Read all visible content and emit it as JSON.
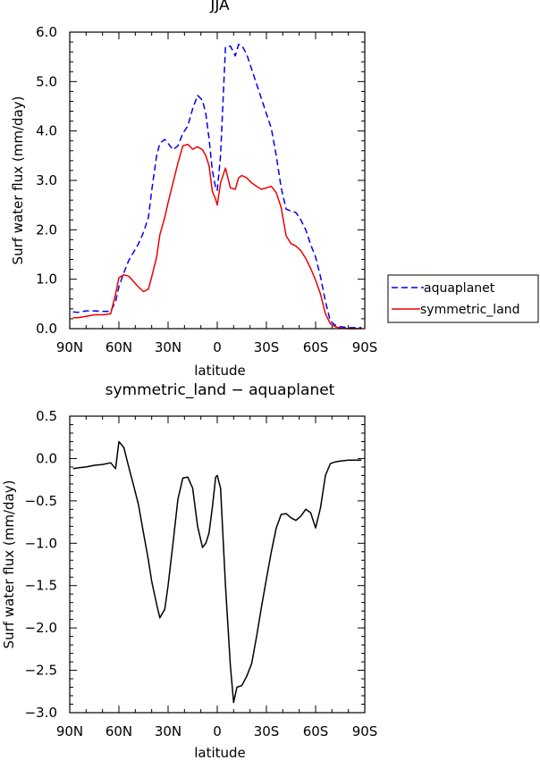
{
  "chart_data": [
    {
      "type": "line",
      "title": "JJA",
      "xlabel": "latitude",
      "ylabel": "Surf water flux (mm/day)",
      "xlim": [
        -90,
        90
      ],
      "ylim": [
        0,
        6
      ],
      "x_ticks": [
        {
          "value": -90,
          "label": "90N"
        },
        {
          "value": -60,
          "label": "60N"
        },
        {
          "value": -30,
          "label": "30N"
        },
        {
          "value": 0,
          "label": "0"
        },
        {
          "value": 30,
          "label": "30S"
        },
        {
          "value": 60,
          "label": "60S"
        },
        {
          "value": 90,
          "label": "90S"
        }
      ],
      "y_ticks": [
        {
          "value": 0,
          "label": "0.0"
        },
        {
          "value": 1,
          "label": "1.0"
        },
        {
          "value": 2,
          "label": "2.0"
        },
        {
          "value": 3,
          "label": "3.0"
        },
        {
          "value": 4,
          "label": "4.0"
        },
        {
          "value": 5,
          "label": "5.0"
        },
        {
          "value": 6,
          "label": "6.0"
        }
      ],
      "legend_position": "right, outside plot",
      "series": [
        {
          "name": "aquaplanet",
          "color": "#0000ee",
          "dash": "dashed",
          "x": [
            -88,
            -85,
            -80,
            -75,
            -70,
            -65,
            -62,
            -60,
            -57,
            -54,
            -51,
            -48,
            -45,
            -42,
            -40,
            -37,
            -35,
            -32,
            -30,
            -27,
            -24,
            -21,
            -18,
            -15,
            -12,
            -9,
            -7,
            -5,
            -3,
            -1,
            0,
            2,
            5,
            8,
            11,
            13,
            15,
            18,
            21,
            24,
            27,
            30,
            33,
            36,
            39,
            42,
            45,
            48,
            51,
            54,
            57,
            60,
            63,
            66,
            69,
            72,
            75,
            80,
            85,
            88
          ],
          "y": [
            0.34,
            0.33,
            0.36,
            0.36,
            0.35,
            0.35,
            0.55,
            0.85,
            1.13,
            1.38,
            1.55,
            1.72,
            1.95,
            2.25,
            2.8,
            3.5,
            3.75,
            3.83,
            3.75,
            3.62,
            3.7,
            3.95,
            4.1,
            4.45,
            4.72,
            4.62,
            4.35,
            3.85,
            3.2,
            2.85,
            2.8,
            3.5,
            5.7,
            5.72,
            5.52,
            5.75,
            5.73,
            5.55,
            5.25,
            4.95,
            4.65,
            4.35,
            4.05,
            3.5,
            2.85,
            2.42,
            2.38,
            2.35,
            2.2,
            2.0,
            1.7,
            1.45,
            1.05,
            0.55,
            0.15,
            0.07,
            0.04,
            0.02,
            0.02,
            0.02
          ]
        },
        {
          "name": "symmetric_land",
          "color": "#ee0000",
          "dash": "solid",
          "x": [
            -88,
            -85,
            -80,
            -75,
            -70,
            -65,
            -62,
            -60,
            -57,
            -54,
            -51,
            -48,
            -45,
            -42,
            -40,
            -37,
            -35,
            -32,
            -30,
            -27,
            -24,
            -21,
            -18,
            -15,
            -12,
            -9,
            -7,
            -5,
            -3,
            -1,
            0,
            2,
            5,
            8,
            11,
            13,
            15,
            18,
            21,
            24,
            27,
            30,
            33,
            36,
            39,
            42,
            45,
            48,
            51,
            54,
            57,
            60,
            63,
            66,
            69,
            72,
            75,
            80,
            85,
            88
          ],
          "y": [
            0.22,
            0.22,
            0.25,
            0.28,
            0.28,
            0.3,
            0.7,
            1.03,
            1.09,
            1.06,
            0.95,
            0.84,
            0.75,
            0.8,
            1.05,
            1.45,
            1.9,
            2.25,
            2.55,
            2.95,
            3.35,
            3.7,
            3.73,
            3.63,
            3.68,
            3.62,
            3.5,
            3.3,
            2.78,
            2.62,
            2.5,
            2.95,
            3.25,
            2.85,
            2.82,
            3.05,
            3.1,
            3.05,
            2.95,
            2.88,
            2.82,
            2.85,
            2.88,
            2.75,
            2.45,
            1.88,
            1.72,
            1.67,
            1.58,
            1.42,
            1.22,
            0.98,
            0.7,
            0.3,
            0.1,
            0.04,
            0.01,
            0.0,
            0.0,
            0.0
          ]
        }
      ]
    },
    {
      "type": "line",
      "title": "symmetric_land − aquaplanet",
      "xlabel": "latitude",
      "ylabel": "Surf water flux (mm/day)",
      "xlim": [
        -90,
        90
      ],
      "ylim": [
        -3,
        0.5
      ],
      "x_ticks": [
        {
          "value": -90,
          "label": "90N"
        },
        {
          "value": -60,
          "label": "60N"
        },
        {
          "value": -30,
          "label": "30N"
        },
        {
          "value": 0,
          "label": "0"
        },
        {
          "value": 30,
          "label": "30S"
        },
        {
          "value": 60,
          "label": "60S"
        },
        {
          "value": 90,
          "label": "90S"
        }
      ],
      "y_ticks": [
        {
          "value": 0.5,
          "label": "0.5"
        },
        {
          "value": 0,
          "label": "0.0"
        },
        {
          "value": -0.5,
          "label": "−0.5"
        },
        {
          "value": -1,
          "label": "−1.0"
        },
        {
          "value": -1.5,
          "label": "−1.5"
        },
        {
          "value": -2,
          "label": "−2.0"
        },
        {
          "value": -2.5,
          "label": "−2.5"
        },
        {
          "value": -3,
          "label": "−3.0"
        }
      ],
      "series": [
        {
          "color": "#000000",
          "dash": "solid",
          "x": [
            -88,
            -85,
            -80,
            -75,
            -70,
            -65,
            -62,
            -60,
            -57,
            -54,
            -51,
            -48,
            -45,
            -42,
            -40,
            -37,
            -35,
            -32,
            -30,
            -27,
            -24,
            -21,
            -18,
            -15,
            -12,
            -9,
            -7,
            -5,
            -3,
            -1,
            0,
            2,
            5,
            8,
            10,
            12,
            15,
            18,
            21,
            24,
            27,
            30,
            33,
            36,
            39,
            42,
            45,
            48,
            51,
            54,
            57,
            60,
            63,
            66,
            69,
            72,
            75,
            80,
            85,
            88
          ],
          "y": [
            -0.12,
            -0.11,
            -0.1,
            -0.08,
            -0.07,
            -0.05,
            -0.12,
            0.2,
            0.13,
            -0.1,
            -0.32,
            -0.55,
            -0.88,
            -1.2,
            -1.45,
            -1.72,
            -1.88,
            -1.78,
            -1.5,
            -1.0,
            -0.48,
            -0.23,
            -0.22,
            -0.35,
            -0.8,
            -1.05,
            -1.0,
            -0.88,
            -0.58,
            -0.22,
            -0.2,
            -0.35,
            -1.5,
            -2.45,
            -2.88,
            -2.7,
            -2.68,
            -2.57,
            -2.42,
            -2.1,
            -1.75,
            -1.42,
            -1.1,
            -0.82,
            -0.66,
            -0.65,
            -0.7,
            -0.73,
            -0.68,
            -0.6,
            -0.64,
            -0.82,
            -0.58,
            -0.2,
            -0.06,
            -0.04,
            -0.03,
            -0.02,
            -0.02,
            -0.02
          ]
        }
      ]
    }
  ]
}
